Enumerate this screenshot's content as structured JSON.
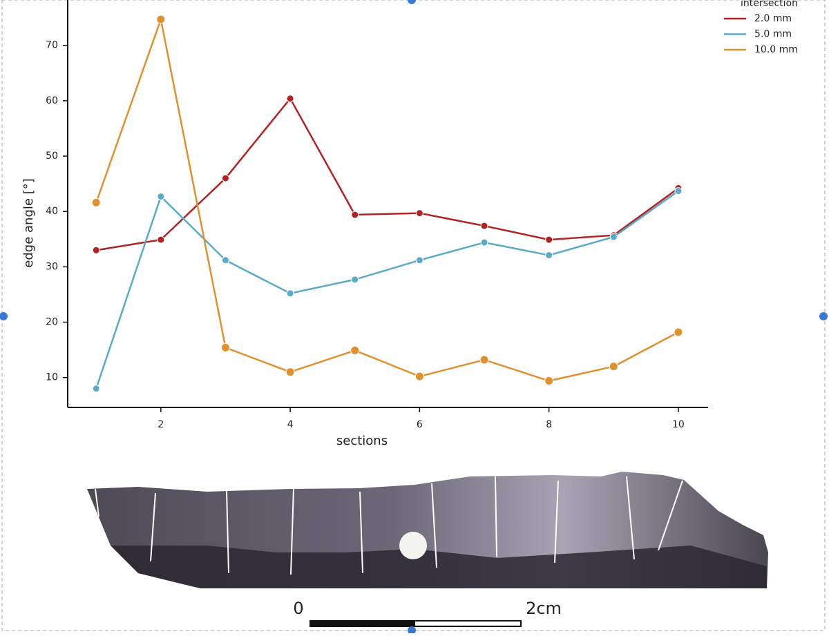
{
  "chart_data": {
    "type": "line",
    "x_label": "sections",
    "y_label": "edge angle [°]",
    "legend_title": "intersection",
    "legend_position": "upper right",
    "x": [
      1,
      2,
      3,
      4,
      5,
      6,
      7,
      8,
      9,
      10
    ],
    "xlim": [
      0.56,
      10.46
    ],
    "xticks": [
      2,
      4,
      6,
      8,
      10
    ],
    "ylim": [
      4.6,
      78.2
    ],
    "yticks": [
      10,
      20,
      30,
      40,
      50,
      60,
      70
    ],
    "series": [
      {
        "name": "2.0 mm",
        "color": "#b22222",
        "values": [
          33.0,
          34.9,
          46.0,
          60.4,
          39.4,
          39.7,
          37.4,
          34.9,
          35.7,
          44.2
        ]
      },
      {
        "name": "5.0 mm",
        "color": "#5aaac8",
        "values": [
          8.0,
          42.7,
          31.2,
          25.2,
          27.7,
          31.2,
          34.4,
          32.1,
          35.4,
          43.7
        ]
      },
      {
        "name": "10.0 mm",
        "color": "#e0902f",
        "values": [
          41.6,
          74.7,
          15.4,
          11.0,
          14.9,
          10.2,
          13.2,
          9.4,
          12.0,
          18.2
        ]
      }
    ]
  },
  "scale_bar": {
    "start_label": "0",
    "end_label": "2cm"
  }
}
